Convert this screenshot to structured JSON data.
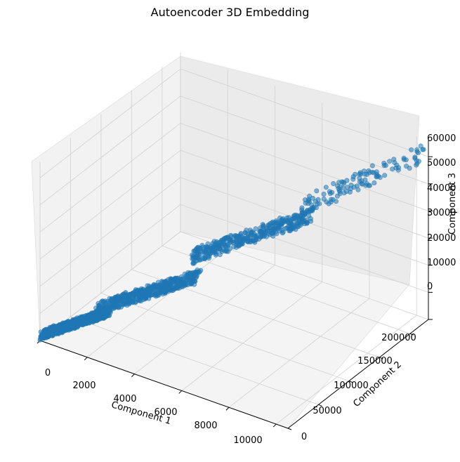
{
  "chart_data": {
    "type": "scatter",
    "title": "Autoencoder 3D Embedding",
    "xlabel": "Component 1",
    "ylabel": "Component 2",
    "zlabel": "Component 3",
    "xlim": [
      0,
      10500
    ],
    "ylim": [
      0,
      230000
    ],
    "zlim": [
      0,
      66000
    ],
    "x_ticks": [
      "0",
      "2000",
      "4000",
      "6000",
      "8000",
      "10000"
    ],
    "y_ticks": [
      "0",
      "50000",
      "100000",
      "150000",
      "200000"
    ],
    "z_ticks": [
      "0",
      "10000",
      "20000",
      "30000",
      "40000",
      "50000",
      "60000"
    ],
    "grid": true,
    "point_color": "#1f77b4",
    "clusters": [
      {
        "x_range": [
          0,
          2000
        ],
        "y_range": [
          0,
          40000
        ],
        "z_range": [
          0,
          12000
        ],
        "count": 900
      },
      {
        "x_range": [
          1500,
          4500
        ],
        "y_range": [
          30000,
          90000
        ],
        "z_range": [
          8000,
          25000
        ],
        "count": 520
      },
      {
        "x_range": [
          4000,
          7500
        ],
        "y_range": [
          90000,
          160000
        ],
        "z_range": [
          24000,
          45000
        ],
        "count": 380
      },
      {
        "x_range": [
          7000,
          10500
        ],
        "y_range": [
          150000,
          230000
        ],
        "z_range": [
          40000,
          66000
        ],
        "count": 120
      }
    ]
  }
}
